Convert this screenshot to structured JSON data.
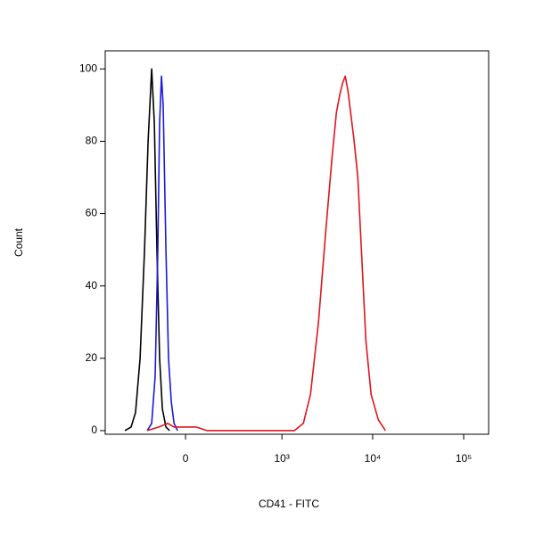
{
  "chart_data": {
    "type": "line",
    "xlabel": "CD41 - FITC",
    "ylabel": "Count",
    "xscale": "biexponential",
    "xlim": [
      -660,
      188000
    ],
    "ylim": [
      -1,
      105
    ],
    "xticks": [
      0,
      {
        "value": 1000,
        "label": "10³"
      },
      {
        "value": 10000,
        "label": "10⁴"
      },
      {
        "value": 100000,
        "label": "10⁵"
      }
    ],
    "yticks": [
      0,
      20,
      40,
      60,
      80,
      100
    ],
    "series": [
      {
        "color": "#000000",
        "x": [
          -389,
          -327,
          -287,
          -250,
          -217,
          -193,
          -170,
          -154,
          -139,
          -124,
          -109,
          -91,
          -73
        ],
        "values": [
          0,
          1,
          5,
          20,
          50,
          80,
          100,
          85,
          50,
          20,
          6,
          1,
          0
        ]
      },
      {
        "color": "#1a1adb",
        "x": [
          -199,
          -170,
          -149,
          -134,
          -124,
          -114,
          -105,
          -91,
          -78,
          -65,
          -52,
          -36
        ],
        "values": [
          0,
          2,
          15,
          50,
          85,
          98,
          90,
          50,
          20,
          8,
          2,
          0
        ]
      },
      {
        "color": "#e0141e",
        "x": [
          -199,
          -128,
          -82,
          -52,
          -12,
          48,
          100,
          1376,
          1728,
          2070,
          2541,
          3045,
          3564,
          3995,
          4365,
          4664,
          4998,
          5350,
          5720,
          6266,
          6864,
          7515,
          8413,
          9627,
          11546,
          13834
        ],
        "values": [
          0,
          1,
          2,
          1,
          1,
          1,
          0,
          0,
          2,
          10,
          30,
          55,
          75,
          88,
          93,
          96,
          98,
          94,
          88,
          80,
          70,
          50,
          25,
          10,
          3,
          0
        ]
      }
    ]
  }
}
